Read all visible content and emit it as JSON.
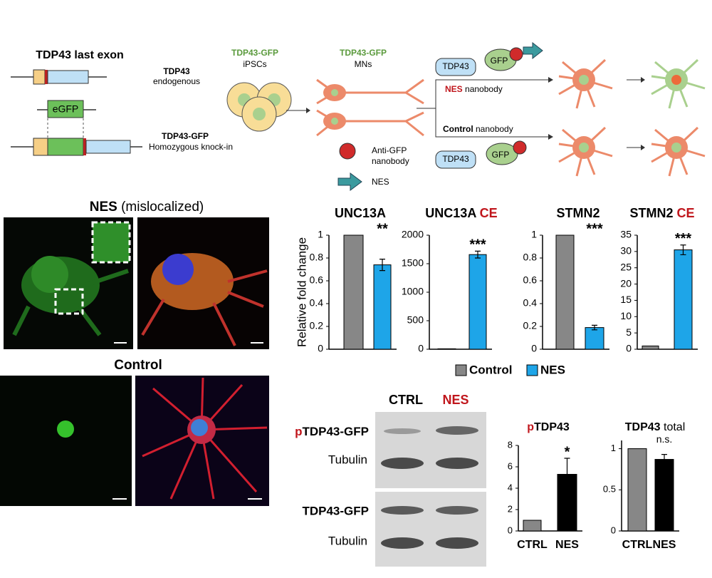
{
  "diagram": {
    "gene_title": "TDP43 last exon",
    "endogenous": {
      "name": "TDP43",
      "note": "endogenous"
    },
    "insert": "eGFP",
    "knockin": {
      "name": "TDP43-GFP",
      "note": "Homozygous knock-in"
    },
    "ipsc": {
      "name": "TDP43-GFP",
      "note": "iPSCs"
    },
    "mns": {
      "name": "TDP43-GFP",
      "note": "MNs"
    },
    "nes_arm": {
      "protein": "TDP43",
      "tag": "GFP",
      "label": "NES",
      "suffix": "nanobody"
    },
    "control_arm": {
      "protein": "TDP43",
      "tag": "GFP",
      "label": "Control",
      "suffix": "nanobody"
    },
    "key": {
      "nanobody": [
        "Anti-GFP",
        "nanobody"
      ],
      "nes": "NES"
    }
  },
  "micrographs": {
    "nes": {
      "title": "NES",
      "suffix": "(mislocalized)"
    },
    "control": {
      "title": "Control"
    }
  },
  "blot": {
    "columns": [
      "CTRL",
      "NES"
    ],
    "rows": [
      {
        "prefix": "p",
        "label": "TDP43-GFP"
      },
      {
        "label": "Tubulin"
      },
      {
        "label": "TDP43-GFP"
      },
      {
        "label": "Tubulin"
      }
    ]
  },
  "legend": {
    "items": [
      {
        "name": "Control",
        "color": "#878787"
      },
      {
        "name": "NES",
        "color": "#1ea5e8"
      }
    ]
  },
  "chart_data": [
    {
      "type": "bar",
      "title": "UNC13A",
      "ylabel": "Relative fold change",
      "values": [
        1,
        0.74
      ],
      "errors": [
        null,
        0.05
      ],
      "annotation": "**",
      "ylim": [
        0,
        1
      ],
      "yticks": [
        0,
        0.2,
        0.4,
        0.6,
        0.8,
        1
      ]
    },
    {
      "type": "bar",
      "title": "UNC13A",
      "title_suffix": "CE",
      "values": [
        8,
        1660
      ],
      "errors": [
        null,
        60
      ],
      "annotation": "***",
      "ylim": [
        0,
        2000
      ],
      "yticks": [
        0,
        500,
        1000,
        1500,
        2000
      ]
    },
    {
      "type": "bar",
      "title": "STMN2",
      "values": [
        1,
        0.19
      ],
      "errors": [
        null,
        0.02
      ],
      "annotation": "***",
      "ylim": [
        0,
        1
      ],
      "yticks": [
        0,
        0.2,
        0.4,
        0.6,
        0.8,
        1
      ]
    },
    {
      "type": "bar",
      "title": "STMN2",
      "title_suffix": "CE",
      "values": [
        1,
        30.5
      ],
      "errors": [
        null,
        1.5
      ],
      "annotation": "***",
      "ylim": [
        0,
        35
      ],
      "yticks": [
        0,
        5,
        10,
        15,
        20,
        25,
        30,
        35
      ]
    },
    {
      "type": "bar",
      "title_prefix": "p",
      "title": "TDP43",
      "categories": [
        "CTRL",
        "NES"
      ],
      "colors": [
        "#878787",
        "#000000"
      ],
      "values": [
        1,
        5.3
      ],
      "errors": [
        null,
        1.5
      ],
      "annotation": "*",
      "ylim": [
        0,
        8
      ],
      "yticks": [
        0,
        2,
        4,
        6,
        8
      ]
    },
    {
      "type": "bar",
      "title": "TDP43",
      "title_suffix": "total",
      "categories": [
        "CTRL",
        "NES"
      ],
      "colors": [
        "#878787",
        "#000000"
      ],
      "values": [
        1,
        0.87
      ],
      "errors": [
        null,
        0.06
      ],
      "annotation": "n.s.",
      "ylim": [
        0,
        1.1
      ],
      "yticks": [
        0,
        0.5,
        1
      ]
    }
  ]
}
